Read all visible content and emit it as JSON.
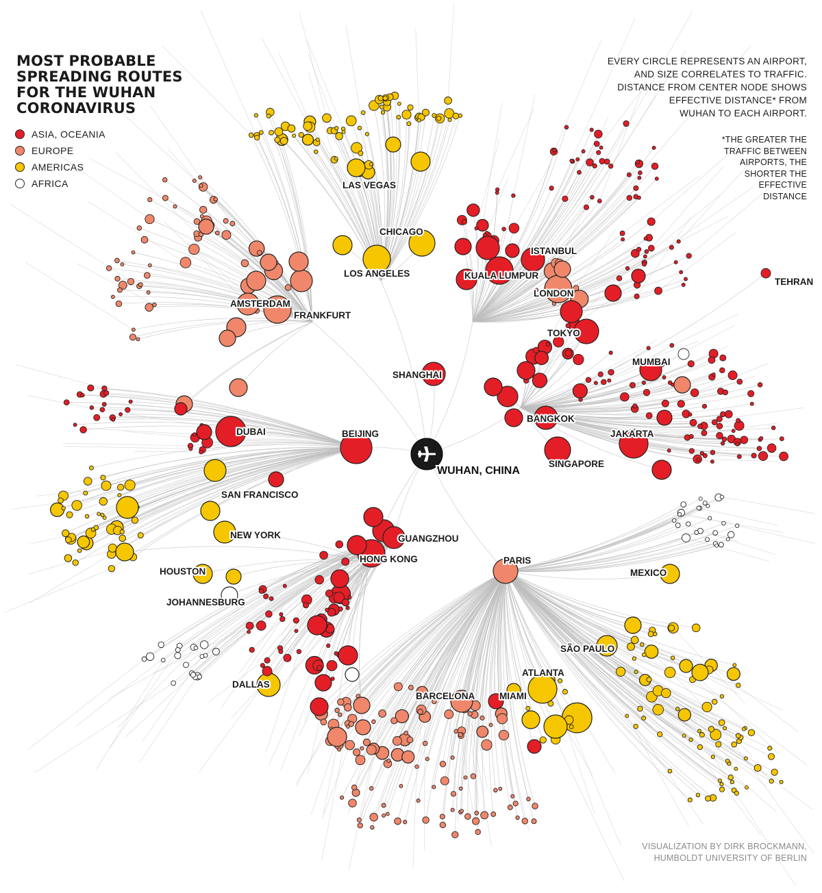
{
  "title_lines": [
    "MOST PROBABLE",
    "SPREADING ROUTES",
    "FOR THE WUHAN",
    "CORONAVIRUS"
  ],
  "legend": [
    {
      "label": "ASIA, OCEANIA",
      "color": "#e41e26"
    },
    {
      "label": "EUROPE",
      "color": "#f0876b"
    },
    {
      "label": "AMERICAS",
      "color": "#f6c600"
    },
    {
      "label": "AFRICA",
      "color": "#ffffff"
    }
  ],
  "explanation_lines": [
    "EVERY CIRCLE REPRESENTS AN AIRPORT,",
    "AND SIZE CORRELATES TO TRAFFIC.",
    "DISTANCE FROM CENTER NODE SHOWS",
    "EFFECTIVE DISTANCE*  FROM",
    "WUHAN TO EACH AIRPORT."
  ],
  "footnote_lines": [
    "*THE GREATER THE",
    "TRAFFIC BETWEEN",
    "AIRPORTS, THE",
    "SHORTER THE",
    "EFFECTIVE",
    "DISTANCE"
  ],
  "credit_lines": [
    "VISUALIZATION BY DIRK BROCKMANN,",
    "HUMBOLDT UNIVERSITY OF BERLIN"
  ],
  "hub": {
    "label": "WUHAN, CHINA",
    "icon": "airplane-icon"
  },
  "colors": {
    "asia": "#e41e26",
    "europe": "#f0876b",
    "americas": "#f6c600",
    "africa": "#ffffff",
    "outline": "#222222",
    "edge": "#bdbdbd",
    "hub": "#1a1a1a"
  },
  "city_labels": [
    "SHANGHAI",
    "BEIJING",
    "GUANGZHOU",
    "HONG KONG",
    "PARIS",
    "DUBAI",
    "AMSTERDAM",
    "FRANKFURT",
    "LOS ANGELES",
    "LAS VEGAS",
    "CHICAGO",
    "KUALA LUMPUR",
    "ISTANBUL",
    "LONDON",
    "TOKYO",
    "MUMBAI",
    "BANGKOK",
    "JAKARTA",
    "SINGAPORE",
    "TEHRAN",
    "SAN FRANCISCO",
    "NEW YORK",
    "HOUSTON",
    "JOHANNESBURG",
    "DALLAS",
    "BARCELONA",
    "MIAMI",
    "ATLANTA",
    "SÃO PAULO",
    "MEXICO"
  ]
}
